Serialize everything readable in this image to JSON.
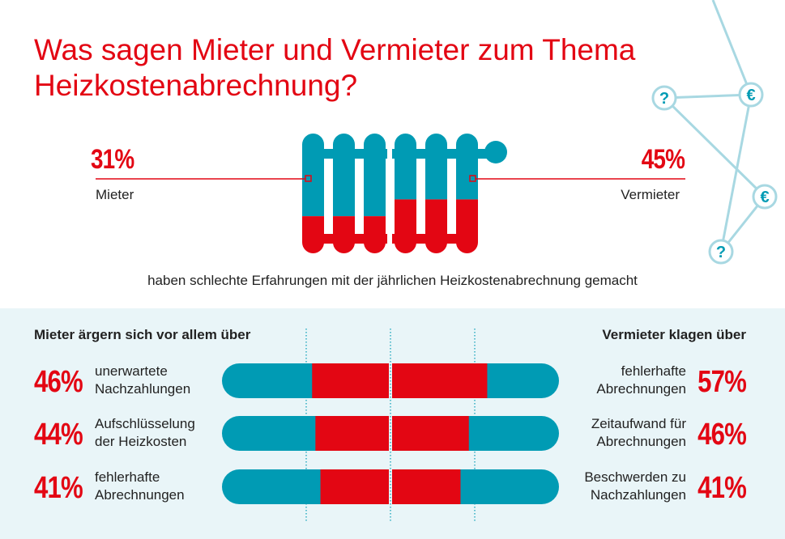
{
  "title": {
    "line1": "Was sagen Mieter und Vermieter zum Thema",
    "line2": "Heizkostenabrechnung?"
  },
  "top": {
    "mieter_pct": "31%",
    "mieter_label": "Mieter",
    "vermieter_pct": "45%",
    "vermieter_label": "Vermieter",
    "caption": "haben schlechte Erfahrungen mit der jährlichen Heizkostenabrechnung gemacht"
  },
  "decoration": {
    "nodes": [
      "?",
      "€",
      "€",
      "?"
    ]
  },
  "colors": {
    "red": "#e30613",
    "teal": "#009bb4",
    "light": "#a8d8e2",
    "bg": "#e9f5f8"
  },
  "chart_data": {
    "type": "bar",
    "radiator": {
      "Mieter": 31,
      "Vermieter": 45
    },
    "left": {
      "header": "Mieter ärgern sich vor allem über",
      "items": [
        {
          "pct_label": "46%",
          "value": 46,
          "line1": "unerwartete",
          "line2": "Nachzahlungen"
        },
        {
          "pct_label": "44%",
          "value": 44,
          "line1": "Aufschlüsselung",
          "line2": "der Heizkosten"
        },
        {
          "pct_label": "41%",
          "value": 41,
          "line1": "fehlerhafte",
          "line2": "Abrechnungen"
        }
      ]
    },
    "right": {
      "header": "Vermieter klagen über",
      "items": [
        {
          "pct_label": "57%",
          "value": 57,
          "line1": "fehlerhafte",
          "line2": "Abrechnungen"
        },
        {
          "pct_label": "46%",
          "value": 46,
          "line1": "Zeitaufwand für",
          "line2": "Abrechnungen"
        },
        {
          "pct_label": "41%",
          "value": 41,
          "line1": "Beschwerden zu",
          "line2": "Nachzahlungen"
        }
      ]
    },
    "xlim": [
      0,
      100
    ]
  }
}
